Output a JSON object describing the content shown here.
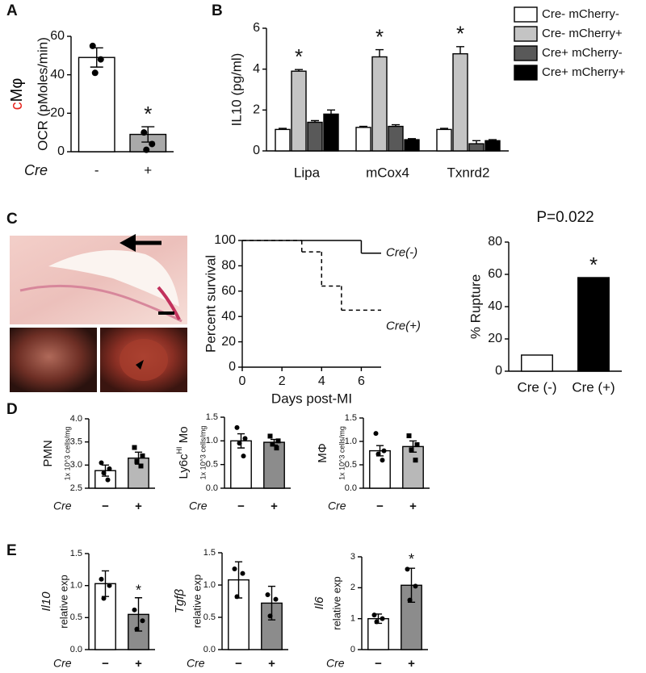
{
  "panel_labels": [
    "A",
    "B",
    "C",
    "D",
    "E"
  ],
  "chart_data": [
    {
      "type": "bar",
      "side_label": [
        "c",
        "Mφ"
      ],
      "side_label_colors": [
        "#e8261f",
        "#000000"
      ],
      "ylabel": "OCR (pMoles/min)",
      "xlabel": "Cre",
      "categories": [
        "-",
        "+"
      ],
      "values": [
        49,
        9
      ],
      "errors": [
        5,
        4
      ],
      "points": [
        [
          55,
          48,
          41
        ],
        [
          10,
          4,
          1
        ]
      ],
      "colors": [
        "#ffffff",
        "#a9a9a9"
      ],
      "ylim": [
        0,
        60
      ],
      "yticks": [
        0,
        20,
        40,
        60
      ],
      "annotations": [
        {
          "text": "*",
          "category": 1
        }
      ]
    },
    {
      "type": "bar",
      "ylabel": "IL10 (pg/ml)",
      "categories": [
        "Lipa",
        "mCox4",
        "Txnrd2"
      ],
      "ylim": [
        0,
        6
      ],
      "yticks": [
        0,
        2,
        4,
        6
      ],
      "legend": "right",
      "series": [
        {
          "name": "Cre- mCherry-",
          "color": "#ffffff",
          "values": [
            1.05,
            1.15,
            1.05
          ],
          "errors": [
            0.05,
            0.05,
            0.05
          ]
        },
        {
          "name": "Cre- mCherry+",
          "color": "#c4c4c4",
          "values": [
            3.9,
            4.6,
            4.75
          ],
          "errors": [
            0.08,
            0.35,
            0.35
          ]
        },
        {
          "name": "Cre+ mCherry-",
          "color": "#595959",
          "values": [
            1.4,
            1.2,
            0.35
          ],
          "errors": [
            0.08,
            0.08,
            0.15
          ]
        },
        {
          "name": "Cre+ mCherry+",
          "color": "#000000",
          "values": [
            1.8,
            0.55,
            0.5
          ],
          "errors": [
            0.2,
            0.05,
            0.05
          ]
        }
      ],
      "annotations": [
        {
          "text": "*",
          "category": 0,
          "series": 1
        },
        {
          "text": "*",
          "category": 1,
          "series": 1
        },
        {
          "text": "*",
          "category": 2,
          "series": 1
        }
      ]
    },
    {
      "type": "step",
      "ylabel": "Percent survival",
      "xlabel": "Days post-MI",
      "xlim": [
        0,
        7
      ],
      "xticks": [
        0,
        2,
        4,
        6
      ],
      "ylim": [
        0,
        100
      ],
      "yticks": [
        0,
        20,
        40,
        60,
        80,
        100
      ],
      "series": [
        {
          "name": "Cre(-)",
          "color": "#000000",
          "dash": false,
          "x": [
            0,
            6
          ],
          "values": [
            100,
            90
          ]
        },
        {
          "name": "Cre(+)",
          "color": "#000000",
          "dash": true,
          "x": [
            0,
            3,
            4,
            5
          ],
          "values": [
            100,
            91,
            64,
            45
          ]
        }
      ]
    },
    {
      "type": "bar",
      "title": "P=0.022",
      "ylabel": "% Rupture",
      "categories": [
        "Cre (-)",
        "Cre (+)"
      ],
      "values": [
        10,
        58
      ],
      "colors": [
        "#ffffff",
        "#000000"
      ],
      "ylim": [
        0,
        80
      ],
      "yticks": [
        0,
        20,
        40,
        60,
        80
      ],
      "annotations": [
        {
          "text": "*",
          "category": 1
        }
      ]
    },
    {
      "type": "bar",
      "ylabel": "PMN",
      "ylabel2": "1x 10^3 cells/mg",
      "xlabel": "Cre",
      "categories": [
        "−",
        "+"
      ],
      "values": [
        2.88,
        3.15
      ],
      "errors": [
        0.12,
        0.13
      ],
      "points": [
        [
          3.05,
          2.92,
          2.83,
          2.68
        ],
        [
          3.38,
          3.2,
          3.08,
          2.98
        ]
      ],
      "markers": [
        "circle",
        "square"
      ],
      "colors": [
        "#ffffff",
        "#b8b8b8"
      ],
      "ylim": [
        2.5,
        4
      ],
      "yticks": [
        2.5,
        {
          "value": 3,
          "label": "3.0"
        },
        3.5,
        {
          "value": 4,
          "label": "4.0"
        }
      ]
    },
    {
      "type": "bar",
      "ylabel": [
        "Ly6c",
        "HI",
        " Mo"
      ],
      "ylabel2": "1x 10^3 cells/mg",
      "xlabel": "Cre",
      "categories": [
        "−",
        "+"
      ],
      "values": [
        1,
        0.97
      ],
      "errors": [
        0.15,
        0.06
      ],
      "points": [
        [
          1.28,
          1.05,
          0.95,
          0.68
        ],
        [
          1.1,
          1.0,
          0.93,
          0.85
        ]
      ],
      "markers": [
        "circle",
        "square"
      ],
      "colors": [
        "#ffffff",
        "#8c8c8c"
      ],
      "ylim": [
        0,
        1.5
      ],
      "yticks": [
        {
          "value": 0,
          "label": "0.0"
        },
        0.5,
        {
          "value": 1,
          "label": "1.0"
        },
        1.5
      ]
    },
    {
      "type": "bar",
      "ylabel": "MΦ",
      "ylabel2": "1x 10^3 cells/mg",
      "xlabel": "Cre",
      "categories": [
        "−",
        "+"
      ],
      "values": [
        0.8,
        0.89
      ],
      "errors": [
        0.11,
        0.12
      ],
      "points": [
        [
          1.17,
          0.8,
          0.73,
          0.6
        ],
        [
          1.12,
          0.93,
          0.82,
          0.6
        ]
      ],
      "markers": [
        "circle",
        "square"
      ],
      "colors": [
        "#ffffff",
        "#b8b8b8"
      ],
      "ylim": [
        0,
        1.5
      ],
      "yticks": [
        {
          "value": 0,
          "label": "0.0"
        },
        0.5,
        {
          "value": 1,
          "label": "1.0"
        },
        1.5
      ]
    },
    {
      "type": "bar",
      "ylabel": "Il10",
      "ylabel_italic": true,
      "ylabel2": "relative exp",
      "xlabel": "Cre",
      "categories": [
        "−",
        "+"
      ],
      "values": [
        1.03,
        0.55
      ],
      "errors": [
        0.2,
        0.26
      ],
      "points": [
        [
          1.1,
          1.0,
          0.8
        ],
        [
          0.62,
          0.45,
          0.32
        ]
      ],
      "colors": [
        "#ffffff",
        "#8c8c8c"
      ],
      "ylim": [
        0,
        1.5
      ],
      "yticks": [
        {
          "value": 0,
          "label": "0.0"
        },
        0.5,
        {
          "value": 1,
          "label": "1.0"
        },
        1.5
      ],
      "annotations": [
        {
          "text": "*",
          "category": 1
        }
      ]
    },
    {
      "type": "bar",
      "ylabel": "Tgfβ",
      "ylabel_italic": true,
      "ylabel2": "relative exp",
      "xlabel": "Cre",
      "categories": [
        "−",
        "+"
      ],
      "values": [
        1.08,
        0.72
      ],
      "errors": [
        0.28,
        0.26
      ],
      "points": [
        [
          1.25,
          1.18,
          0.82
        ],
        [
          0.85,
          0.78,
          0.52
        ]
      ],
      "colors": [
        "#ffffff",
        "#8c8c8c"
      ],
      "ylim": [
        0,
        1.5
      ],
      "yticks": [
        {
          "value": 0,
          "label": "0.0"
        },
        0.5,
        {
          "value": 1,
          "label": "1.0"
        },
        1.5
      ]
    },
    {
      "type": "bar",
      "ylabel": "Il6",
      "ylabel_italic": true,
      "ylabel2": "relative exp",
      "xlabel": "Cre",
      "categories": [
        "−",
        "+"
      ],
      "values": [
        1,
        2.08
      ],
      "errors": [
        0.15,
        0.55
      ],
      "points": [
        [
          1.12,
          1.0,
          0.9
        ],
        [
          2.6,
          2.05,
          1.6
        ]
      ],
      "colors": [
        "#ffffff",
        "#8c8c8c"
      ],
      "ylim": [
        0,
        3
      ],
      "yticks": [
        0,
        1,
        2,
        3
      ],
      "annotations": [
        {
          "text": "*",
          "category": 1
        }
      ]
    }
  ]
}
